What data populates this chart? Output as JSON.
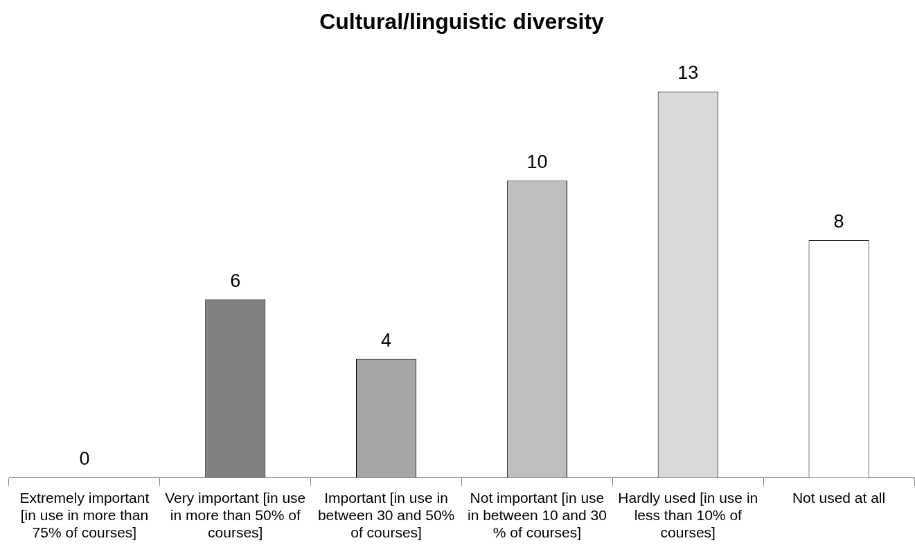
{
  "chart_data": {
    "type": "bar",
    "title": "Cultural/linguistic diversity",
    "categories": [
      "Extremely important [in use in more than 75% of courses]",
      "Very important [in use in more than 50% of courses]",
      "Important [in use in between 30 and 50% of courses]",
      "Not important [in use in between 10 and 30 % of courses]",
      "Hardly used [in use in less than 10% of courses]",
      "Not used at all"
    ],
    "values": [
      0,
      6,
      4,
      10,
      13,
      8
    ],
    "colors": [
      "#595959",
      "#808080",
      "#a6a6a6",
      "#bfbfbf",
      "#d9d9d9",
      "#ffffff"
    ],
    "data_labels": true,
    "grid": false,
    "legend": false
  }
}
